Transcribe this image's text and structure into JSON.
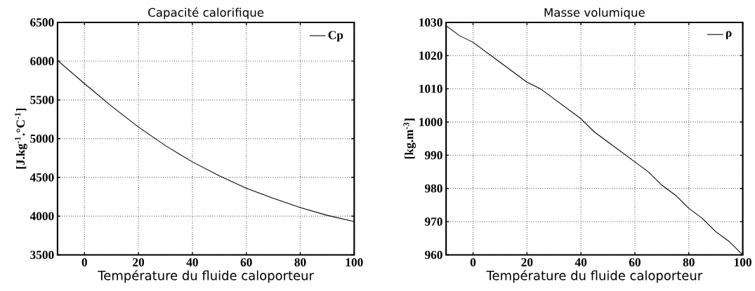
{
  "chart_data": [
    {
      "type": "line",
      "title": "Capacité calorifique",
      "xlabel": "Température du fluide caloporteur",
      "ylabel": "[J.kg$^{-1}$.°C$^{-1}$]",
      "x": [
        -10,
        0,
        10,
        20,
        30,
        40,
        50,
        60,
        70,
        80,
        90,
        100
      ],
      "series": [
        {
          "name": "Cp",
          "color": "#000000",
          "values": [
            6010,
            5710,
            5420,
            5150,
            4910,
            4700,
            4520,
            4360,
            4230,
            4110,
            4010,
            3930
          ]
        }
      ],
      "xlim": [
        -10,
        100
      ],
      "xticks": [
        0,
        20,
        40,
        60,
        80,
        100
      ],
      "ylim": [
        3500,
        6500
      ],
      "yticks": [
        3500,
        4000,
        4500,
        5000,
        5500,
        6000,
        6500
      ],
      "grid": true,
      "legend": "top right",
      "marker": "none",
      "line_style": "solid"
    },
    {
      "type": "line",
      "title": "Masse volumique",
      "xlabel": "Température du fluide caloporteur",
      "ylabel": "[kg.m$^{-3}$]",
      "x": [
        -10,
        -5,
        0,
        10,
        20,
        25,
        30,
        40,
        45,
        50,
        60,
        65,
        70,
        75,
        80,
        85,
        90,
        95,
        100
      ],
      "series": [
        {
          "name": "ρ",
          "color": "#000000",
          "values": [
            1029,
            1026,
            1024,
            1018,
            1012,
            1010,
            1007,
            1001,
            997,
            994,
            988,
            985,
            981,
            978,
            974,
            971,
            967,
            964,
            960
          ]
        }
      ],
      "xlim": [
        -10,
        100
      ],
      "xticks": [
        0,
        20,
        40,
        60,
        80,
        100
      ],
      "ylim": [
        960,
        1030
      ],
      "yticks": [
        960,
        970,
        980,
        990,
        1000,
        1010,
        1020,
        1030
      ],
      "grid": true,
      "legend": "top right",
      "marker": "none",
      "line_style": "solid"
    }
  ]
}
